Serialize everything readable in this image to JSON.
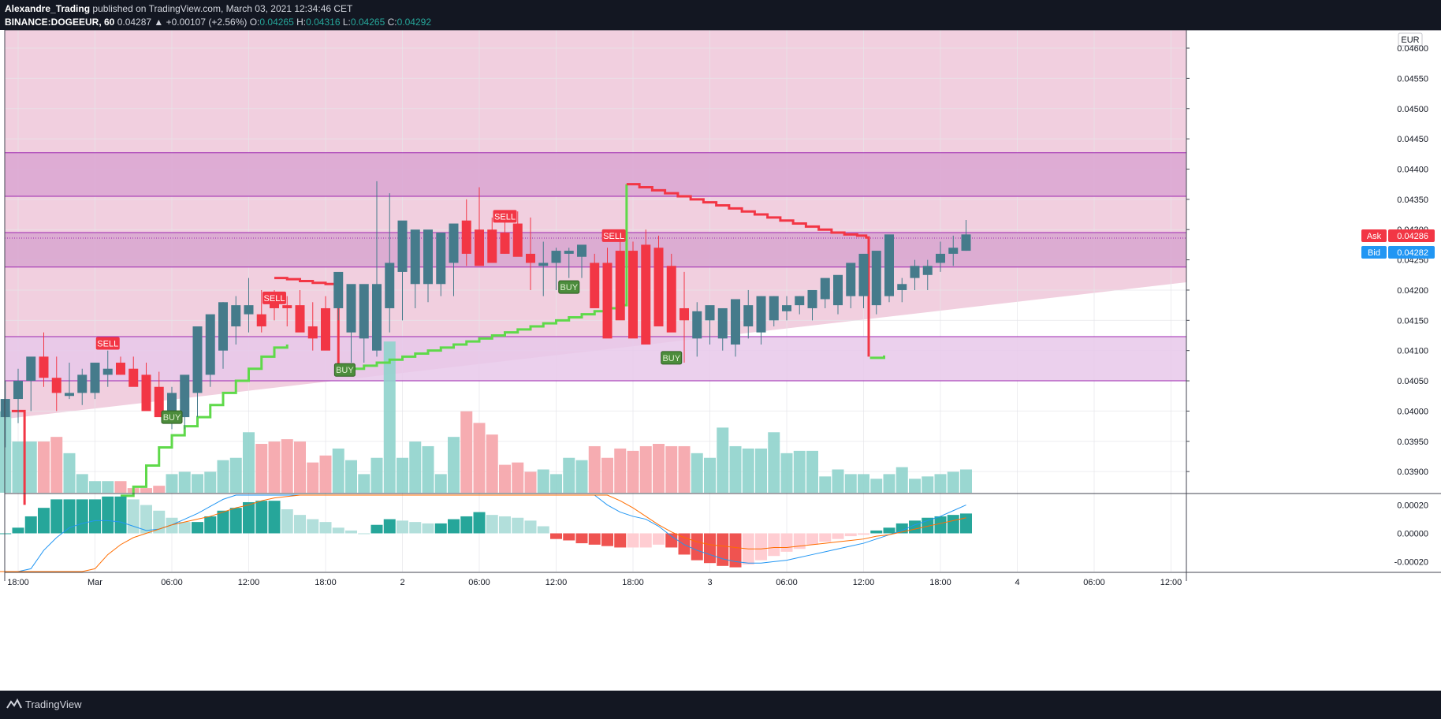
{
  "header": {
    "author": "Alexandre_Trading",
    "published": "published on TradingView.com, March 03, 2021 12:34:46 CET",
    "symbol": "BINANCE:DOGEEUR, 60",
    "change": "0.04287 ▲ +0.00107 (+2.56%)",
    "o_label": "O:",
    "o_value": "0.04265",
    "h_label": "H:",
    "h_value": "0.04316",
    "l_label": "L:",
    "l_value": "0.04265",
    "c_label": "C:",
    "c_value": "0.04292"
  },
  "footer": {
    "brand": "TradingView",
    "logo_icon": "tradingview-logo-icon"
  },
  "chart_data": {
    "type": "candlestick",
    "currency": "EUR",
    "price_axis": {
      "ylim": [
        0.03865,
        0.0463
      ],
      "ticks": [
        "0.04600",
        "0.04550",
        "0.04500",
        "0.04450",
        "0.04400",
        "0.04350",
        "0.04300",
        "0.04250",
        "0.04200",
        "0.04150",
        "0.04100",
        "0.04050",
        "0.04000",
        "0.03950",
        "0.03900"
      ]
    },
    "time_axis": {
      "labels": [
        "18:00",
        "Mar",
        "06:00",
        "12:00",
        "18:00",
        "2",
        "06:00",
        "12:00",
        "18:00",
        "3",
        "06:00",
        "12:00",
        "18:00",
        "4",
        "06:00",
        "12:00"
      ],
      "hours": [
        -6,
        0,
        6,
        12,
        18,
        24,
        30,
        36,
        42,
        48,
        54,
        60,
        66,
        72,
        78,
        84
      ]
    },
    "ask": {
      "label": "Ask",
      "value": "0.04286",
      "color": "#f23645"
    },
    "bid": {
      "label": "Bid",
      "value": "0.04282",
      "color": "#2196f3"
    },
    "zones": [
      {
        "from": 0.04355,
        "to": 0.04427
      },
      {
        "from": 0.04238,
        "to": 0.04295
      },
      {
        "from": 0.0405,
        "to": 0.04123
      }
    ],
    "candles": {
      "start_hour": -9,
      "open": [
        0.0385,
        0.0385,
        0.0399,
        0.0402,
        0.0405,
        0.0409,
        0.04055,
        0.04025,
        0.0403,
        0.0403,
        0.0406,
        0.0408,
        0.0407,
        0.0406,
        0.0404,
        0.04,
        0.0399,
        0.0403,
        0.0406,
        0.041,
        0.0414,
        0.0416,
        0.0416,
        0.0418,
        0.04175,
        0.04175,
        0.0414,
        0.0417,
        0.0417,
        0.0413,
        0.0412,
        0.041,
        0.0417,
        0.0423,
        0.0421,
        0.0421,
        0.0421,
        0.04245,
        0.04315,
        0.043,
        0.043,
        0.04295,
        0.0431,
        0.0426,
        0.0424,
        0.04245,
        0.0426,
        0.04255,
        0.04245,
        0.04245,
        0.04265,
        0.04265,
        0.04275,
        0.0427,
        0.0424,
        0.0417,
        0.0412,
        0.0415,
        0.0412,
        0.0411,
        0.0414,
        0.0413,
        0.0415,
        0.04165,
        0.04175,
        0.0417,
        0.04185,
        0.04175,
        0.0419,
        0.0419,
        0.04175,
        0.0419,
        0.042,
        0.0422,
        0.04225,
        0.04245,
        0.0426,
        0.04265
      ],
      "high": [
        0.0386,
        0.0401,
        0.0405,
        0.0407,
        0.0408,
        0.0413,
        0.0409,
        0.0408,
        0.0407,
        0.0408,
        0.041,
        0.0409,
        0.0409,
        0.0408,
        0.04065,
        0.0404,
        0.0402,
        0.0407,
        0.0414,
        0.0418,
        0.0419,
        0.0422,
        0.042,
        0.042,
        0.0419,
        0.042,
        0.0418,
        0.0419,
        0.0418,
        0.0415,
        0.0414,
        0.0438,
        0.0436,
        0.0426,
        0.0423,
        0.0424,
        0.0423,
        0.043,
        0.0435,
        0.0437,
        0.0432,
        0.0432,
        0.0433,
        0.0432,
        0.0428,
        0.0427,
        0.0427,
        0.0427,
        0.0426,
        0.0427,
        0.0428,
        0.0428,
        0.043,
        0.0429,
        0.0426,
        0.0423,
        0.0418,
        0.0417,
        0.0416,
        0.0414,
        0.042,
        0.0419,
        0.0419,
        0.0419,
        0.0419,
        0.0419,
        0.0421,
        0.042,
        0.0421,
        0.0421,
        0.04205,
        0.0422,
        0.0422,
        0.0425,
        0.0425,
        0.0428,
        0.0429,
        0.04316
      ],
      "low": [
        0.0384,
        0.0384,
        0.0394,
        0.0398,
        0.04,
        0.0404,
        0.04,
        0.0402,
        0.0401,
        0.0402,
        0.0404,
        0.0406,
        0.0405,
        0.0404,
        0.04,
        0.0397,
        0.0397,
        0.0399,
        0.0404,
        0.0407,
        0.0411,
        0.0413,
        0.0413,
        0.0415,
        0.0414,
        0.0415,
        0.041,
        0.0411,
        0.0415,
        0.0408,
        0.0408,
        0.0409,
        0.0413,
        0.0415,
        0.0417,
        0.0418,
        0.0419,
        0.0419,
        0.0424,
        0.0426,
        0.0426,
        0.0426,
        0.0427,
        0.042,
        0.0419,
        0.042,
        0.0422,
        0.0422,
        0.0422,
        0.0422,
        0.0423,
        0.0423,
        0.0425,
        0.0422,
        0.0417,
        0.0408,
        0.0409,
        0.0411,
        0.041,
        0.0409,
        0.0412,
        0.0411,
        0.0414,
        0.0415,
        0.0416,
        0.0415,
        0.0417,
        0.0416,
        0.0417,
        0.0417,
        0.0416,
        0.0418,
        0.0418,
        0.042,
        0.042,
        0.0423,
        0.0424,
        0.04265
      ],
      "close": [
        0.0385,
        0.0399,
        0.0402,
        0.0405,
        0.0409,
        0.04055,
        0.0403,
        0.0403,
        0.0406,
        0.0408,
        0.0407,
        0.0406,
        0.0404,
        0.04,
        0.0399,
        0.0403,
        0.0406,
        0.0414,
        0.0416,
        0.0418,
        0.04175,
        0.04175,
        0.0414,
        0.0417,
        0.0417,
        0.0413,
        0.0412,
        0.041,
        0.0423,
        0.0421,
        0.0421,
        0.0421,
        0.04245,
        0.04315,
        0.043,
        0.043,
        0.04295,
        0.0431,
        0.0426,
        0.0424,
        0.04245,
        0.0426,
        0.04255,
        0.04245,
        0.04245,
        0.04265,
        0.04265,
        0.04275,
        0.0417,
        0.0412,
        0.0415,
        0.0412,
        0.0411,
        0.0414,
        0.0413,
        0.0415,
        0.04165,
        0.04175,
        0.0417,
        0.04185,
        0.04175,
        0.0419,
        0.0419,
        0.04175,
        0.0419,
        0.042,
        0.0422,
        0.04225,
        0.04245,
        0.0426,
        0.04265,
        0.04292,
        0.0421,
        0.0424,
        0.0424,
        0.0426,
        0.0427,
        0.04292
      ],
      "volume": [
        5,
        18,
        35,
        22,
        22,
        22,
        24,
        17,
        8,
        5,
        5,
        5,
        2,
        2,
        3,
        8,
        9,
        8,
        9,
        14,
        15,
        26,
        21,
        22,
        23,
        22,
        13,
        16,
        19,
        14,
        8,
        15,
        65,
        15,
        22,
        20,
        8,
        24,
        35,
        30,
        25,
        12,
        13,
        9,
        10,
        8,
        15,
        14,
        20,
        15,
        19,
        18,
        20,
        21,
        20,
        20,
        17,
        15,
        28,
        20,
        19,
        19,
        26,
        17,
        18,
        18,
        7,
        10,
        8,
        8,
        6,
        8,
        11,
        6,
        7,
        8,
        9,
        10
      ]
    },
    "volume_max": 65,
    "macd": {
      "ylim": [
        -0.00027,
        0.00027
      ],
      "ticks": [
        "0.00020",
        "0.00000",
        "-0.00020"
      ],
      "histogram": [
        -0.00015,
        -8e-05,
        0.0,
        4e-05,
        0.00012,
        0.00018,
        0.00024,
        0.00024,
        0.00024,
        0.00024,
        0.00026,
        0.00026,
        0.00024,
        0.0002,
        0.00016,
        0.00011,
        8e-05,
        8e-05,
        0.00012,
        0.00016,
        0.00018,
        0.00022,
        0.00023,
        0.00023,
        0.00017,
        0.00013,
        0.0001,
        8e-05,
        4e-05,
        2e-05,
        0.0,
        6e-05,
        0.0001,
        9e-05,
        8e-05,
        7e-05,
        7e-05,
        0.0001,
        0.00012,
        0.00015,
        0.00013,
        0.00012,
        0.00011,
        9e-05,
        5e-05,
        -4e-05,
        -5e-05,
        -7e-05,
        -8e-05,
        -9e-05,
        -0.0001,
        -0.0001,
        -0.0001,
        -8e-05,
        -0.0001,
        -0.00015,
        -0.00019,
        -0.00021,
        -0.00023,
        -0.00024,
        -0.00022,
        -0.00019,
        -0.00016,
        -0.00013,
        -0.00011,
        -8e-05,
        -6e-05,
        -4e-05,
        -2e-05,
        -1e-05,
        2e-05,
        4e-05,
        7e-05,
        9e-05,
        0.00011,
        0.00012,
        0.00013,
        0.00014
      ],
      "macd_line": [
        -0.001,
        -0.0008,
        -0.0006,
        -0.0004,
        -0.00025,
        -0.00012,
        -3e-05,
        4e-05,
        7e-05,
        9e-05,
        9e-05,
        8e-05,
        5e-05,
        2e-05,
        3e-05,
        6e-05,
        0.0001,
        0.00014,
        0.00019,
        0.00024,
        0.00028,
        0.00031,
        0.00034,
        0.00036,
        0.00037,
        0.00037,
        0.00036,
        0.00034,
        0.00031,
        0.0004,
        0.0005,
        0.00055,
        0.0006,
        0.00062,
        0.00064,
        0.00066,
        0.00067,
        0.00068,
        0.0007,
        0.00075,
        0.0008,
        0.00082,
        0.0008,
        0.00072,
        0.0006,
        0.0005,
        0.0004,
        0.00035,
        0.00028,
        0.0002,
        0.00015,
        0.00012,
        0.0001,
        5e-05,
        -2e-05,
        -8e-05,
        -0.00012,
        -0.00015,
        -0.00018,
        -0.0002,
        -0.00021,
        -0.00021,
        -0.0002,
        -0.00019,
        -0.00017,
        -0.00015,
        -0.00013,
        -0.00011,
        -9e-05,
        -7e-05,
        -4e-05,
        -1e-05,
        2e-05,
        6e-05,
        9e-05,
        0.00012,
        0.00016,
        0.0002
      ],
      "signal_line": [
        -0.0015,
        -0.00135,
        -0.0012,
        -0.00105,
        -0.0009,
        -0.00075,
        -0.0006,
        -0.00048,
        -0.00035,
        -0.00025,
        -0.00015,
        -8e-05,
        -3e-05,
        0.0,
        3e-05,
        6e-05,
        8e-05,
        0.0001,
        0.00012,
        0.00015,
        0.00018,
        0.0002,
        0.00023,
        0.00025,
        0.00026,
        0.00027,
        0.00028,
        0.00028,
        0.00029,
        0.00032,
        0.00035,
        0.00038,
        0.0004,
        0.00043,
        0.00045,
        0.00048,
        0.0005,
        0.00055,
        0.0006,
        0.00064,
        0.00068,
        0.0007,
        0.00068,
        0.00064,
        0.00058,
        0.00052,
        0.00046,
        0.0004,
        0.00035,
        0.00029,
        0.00023,
        0.00018,
        0.00012,
        6e-05,
        1e-05,
        -3e-05,
        -6e-05,
        -8e-05,
        -9e-05,
        -0.0001,
        -0.00011,
        -0.00011,
        -0.0001,
        -0.0001,
        -9e-05,
        -8e-05,
        -7e-05,
        -6e-05,
        -5e-05,
        -4e-05,
        -2e-05,
        -1e-05,
        1e-05,
        3e-05,
        5e-05,
        7e-05,
        9e-05,
        0.00011
      ]
    },
    "signals": [
      {
        "text": "SELL",
        "type": "sell",
        "hour": 1,
        "price": 0.04112
      },
      {
        "text": "SELL",
        "type": "sell",
        "hour": 14,
        "price": 0.04187
      },
      {
        "text": "SELL",
        "type": "sell",
        "hour": 32,
        "price": 0.04322
      },
      {
        "text": "SELL",
        "type": "sell",
        "hour": 40.5,
        "price": 0.0429
      },
      {
        "text": "BUY",
        "type": "buy",
        "hour": 6,
        "price": 0.0399
      },
      {
        "text": "BUY",
        "type": "buy",
        "hour": 19.5,
        "price": 0.04068
      },
      {
        "text": "BUY",
        "type": "buy",
        "hour": 37,
        "price": 0.04205
      },
      {
        "text": "BUY",
        "type": "buy",
        "hour": 45,
        "price": 0.04088
      }
    ]
  }
}
